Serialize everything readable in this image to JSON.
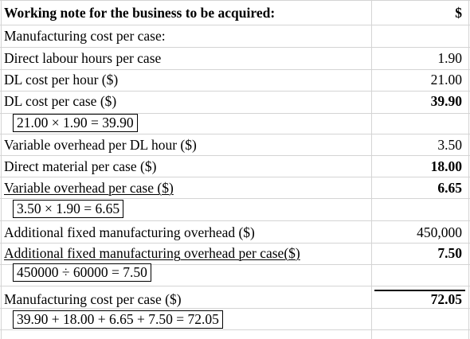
{
  "rows": [
    {
      "label": "Working note for the business to be acquired:",
      "value": "$"
    },
    {
      "label": "Manufacturing cost per case:",
      "value": ""
    },
    {
      "label": "Direct labour hours per case",
      "value": "1.90"
    },
    {
      "label": "DL cost per hour ($)",
      "value": "21.00"
    },
    {
      "label": "DL cost per case ($)",
      "value": "39.90"
    },
    {
      "label": "Variable overhead per DL hour ($)",
      "value": "3.50"
    },
    {
      "label": "Direct material per case ($)",
      "value": "18.00"
    },
    {
      "label": "Variable overhead per case ($)",
      "value": "6.65"
    },
    {
      "label": "Additional fixed manufacturing overhead ($)",
      "value": "450,000"
    },
    {
      "label": "Additional fixed manufacturing overhead  per case($)",
      "value": "7.50"
    },
    {
      "label": "Manufacturing cost per case ($)",
      "value": "72.05"
    }
  ],
  "formulas": {
    "dl_cost": "21.00  ×  1.90 = 39.90",
    "var_overhead": "3.50  ×  1.90 = 6.65",
    "fixed_overhead": "450000  ÷  60000 = 7.50",
    "total": "39.90 + 18.00 + 6.65 + 7.50 = 72.05"
  }
}
